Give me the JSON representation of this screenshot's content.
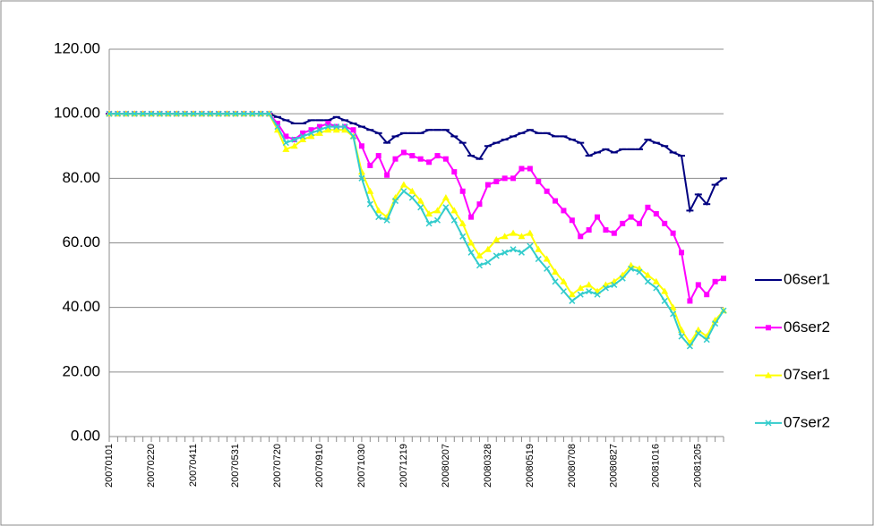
{
  "chart_data": {
    "type": "line",
    "categories": [
      "20070101",
      null,
      null,
      null,
      null,
      "20070220",
      null,
      null,
      null,
      null,
      "20070411",
      null,
      null,
      null,
      null,
      "20070531",
      null,
      null,
      null,
      null,
      "20070720",
      null,
      null,
      null,
      null,
      "20070910",
      null,
      null,
      null,
      null,
      "20071030",
      null,
      null,
      null,
      null,
      "20071219",
      null,
      null,
      null,
      null,
      "20080207",
      null,
      null,
      null,
      null,
      "20080328",
      null,
      null,
      null,
      null,
      "20080519",
      null,
      null,
      null,
      null,
      "20080708",
      null,
      null,
      null,
      null,
      "20080827",
      null,
      null,
      null,
      null,
      "20081016",
      null,
      null,
      null,
      null,
      "20081205",
      null,
      null,
      null
    ],
    "series": [
      {
        "name": "06ser1",
        "color": "#000080",
        "marker": "dash",
        "values": [
          100,
          100,
          100,
          100,
          100,
          100,
          100,
          100,
          100,
          100,
          100,
          100,
          100,
          100,
          100,
          100,
          100,
          100,
          100,
          100,
          99,
          98,
          97,
          97,
          98,
          98,
          98,
          99,
          98,
          97,
          96,
          95,
          94,
          91,
          93,
          94,
          94,
          94,
          95,
          95,
          95,
          93,
          91,
          87,
          86,
          90,
          91,
          92,
          93,
          94,
          95,
          94,
          94,
          93,
          93,
          92,
          91,
          87,
          88,
          89,
          88,
          89,
          89,
          89,
          92,
          91,
          90,
          88,
          87,
          70,
          75,
          72,
          78,
          80
        ]
      },
      {
        "name": "06ser2",
        "color": "#ff00ff",
        "marker": "square",
        "values": [
          100,
          100,
          100,
          100,
          100,
          100,
          100,
          100,
          100,
          100,
          100,
          100,
          100,
          100,
          100,
          100,
          100,
          100,
          100,
          100,
          97,
          93,
          92,
          94,
          95,
          96,
          97,
          96,
          96,
          95,
          90,
          84,
          87,
          81,
          86,
          88,
          87,
          86,
          85,
          87,
          86,
          82,
          76,
          68,
          72,
          78,
          79,
          80,
          80,
          83,
          83,
          79,
          76,
          73,
          70,
          67,
          62,
          64,
          68,
          64,
          63,
          66,
          68,
          66,
          71,
          69,
          66,
          63,
          57,
          42,
          47,
          44,
          48,
          49
        ]
      },
      {
        "name": "07ser1",
        "color": "#ffff00",
        "marker": "triangle",
        "values": [
          100,
          100,
          100,
          100,
          100,
          100,
          100,
          100,
          100,
          100,
          100,
          100,
          100,
          100,
          100,
          100,
          100,
          100,
          100,
          100,
          95,
          89,
          90,
          92,
          93,
          94,
          95,
          95,
          95,
          93,
          82,
          76,
          70,
          68,
          74,
          78,
          76,
          73,
          69,
          70,
          74,
          70,
          66,
          60,
          56,
          58,
          61,
          62,
          63,
          62,
          63,
          58,
          55,
          51,
          48,
          44,
          46,
          47,
          45,
          47,
          48,
          50,
          53,
          52,
          50,
          48,
          45,
          40,
          33,
          29,
          33,
          31,
          36,
          39
        ]
      },
      {
        "name": "07ser2",
        "color": "#33cccc",
        "marker": "x",
        "values": [
          100,
          100,
          100,
          100,
          100,
          100,
          100,
          100,
          100,
          100,
          100,
          100,
          100,
          100,
          100,
          100,
          100,
          100,
          100,
          100,
          96,
          91,
          92,
          93,
          94,
          95,
          96,
          96,
          96,
          93,
          80,
          72,
          68,
          67,
          73,
          76,
          74,
          71,
          66,
          67,
          71,
          67,
          62,
          57,
          53,
          54,
          56,
          57,
          58,
          57,
          59,
          55,
          52,
          48,
          45,
          42,
          44,
          45,
          44,
          46,
          47,
          49,
          52,
          51,
          48,
          46,
          42,
          38,
          31,
          28,
          32,
          30,
          35,
          39
        ]
      }
    ],
    "ylim": [
      0,
      120
    ],
    "yticks": [
      {
        "value": 0,
        "label": "0.00"
      },
      {
        "value": 20,
        "label": "20.00"
      },
      {
        "value": 40,
        "label": "40.00"
      },
      {
        "value": 60,
        "label": "60.00"
      },
      {
        "value": 80,
        "label": "80.00"
      },
      {
        "value": 100,
        "label": "100.00"
      },
      {
        "value": 120,
        "label": "120.00"
      }
    ],
    "grid": true,
    "legend": "right"
  }
}
